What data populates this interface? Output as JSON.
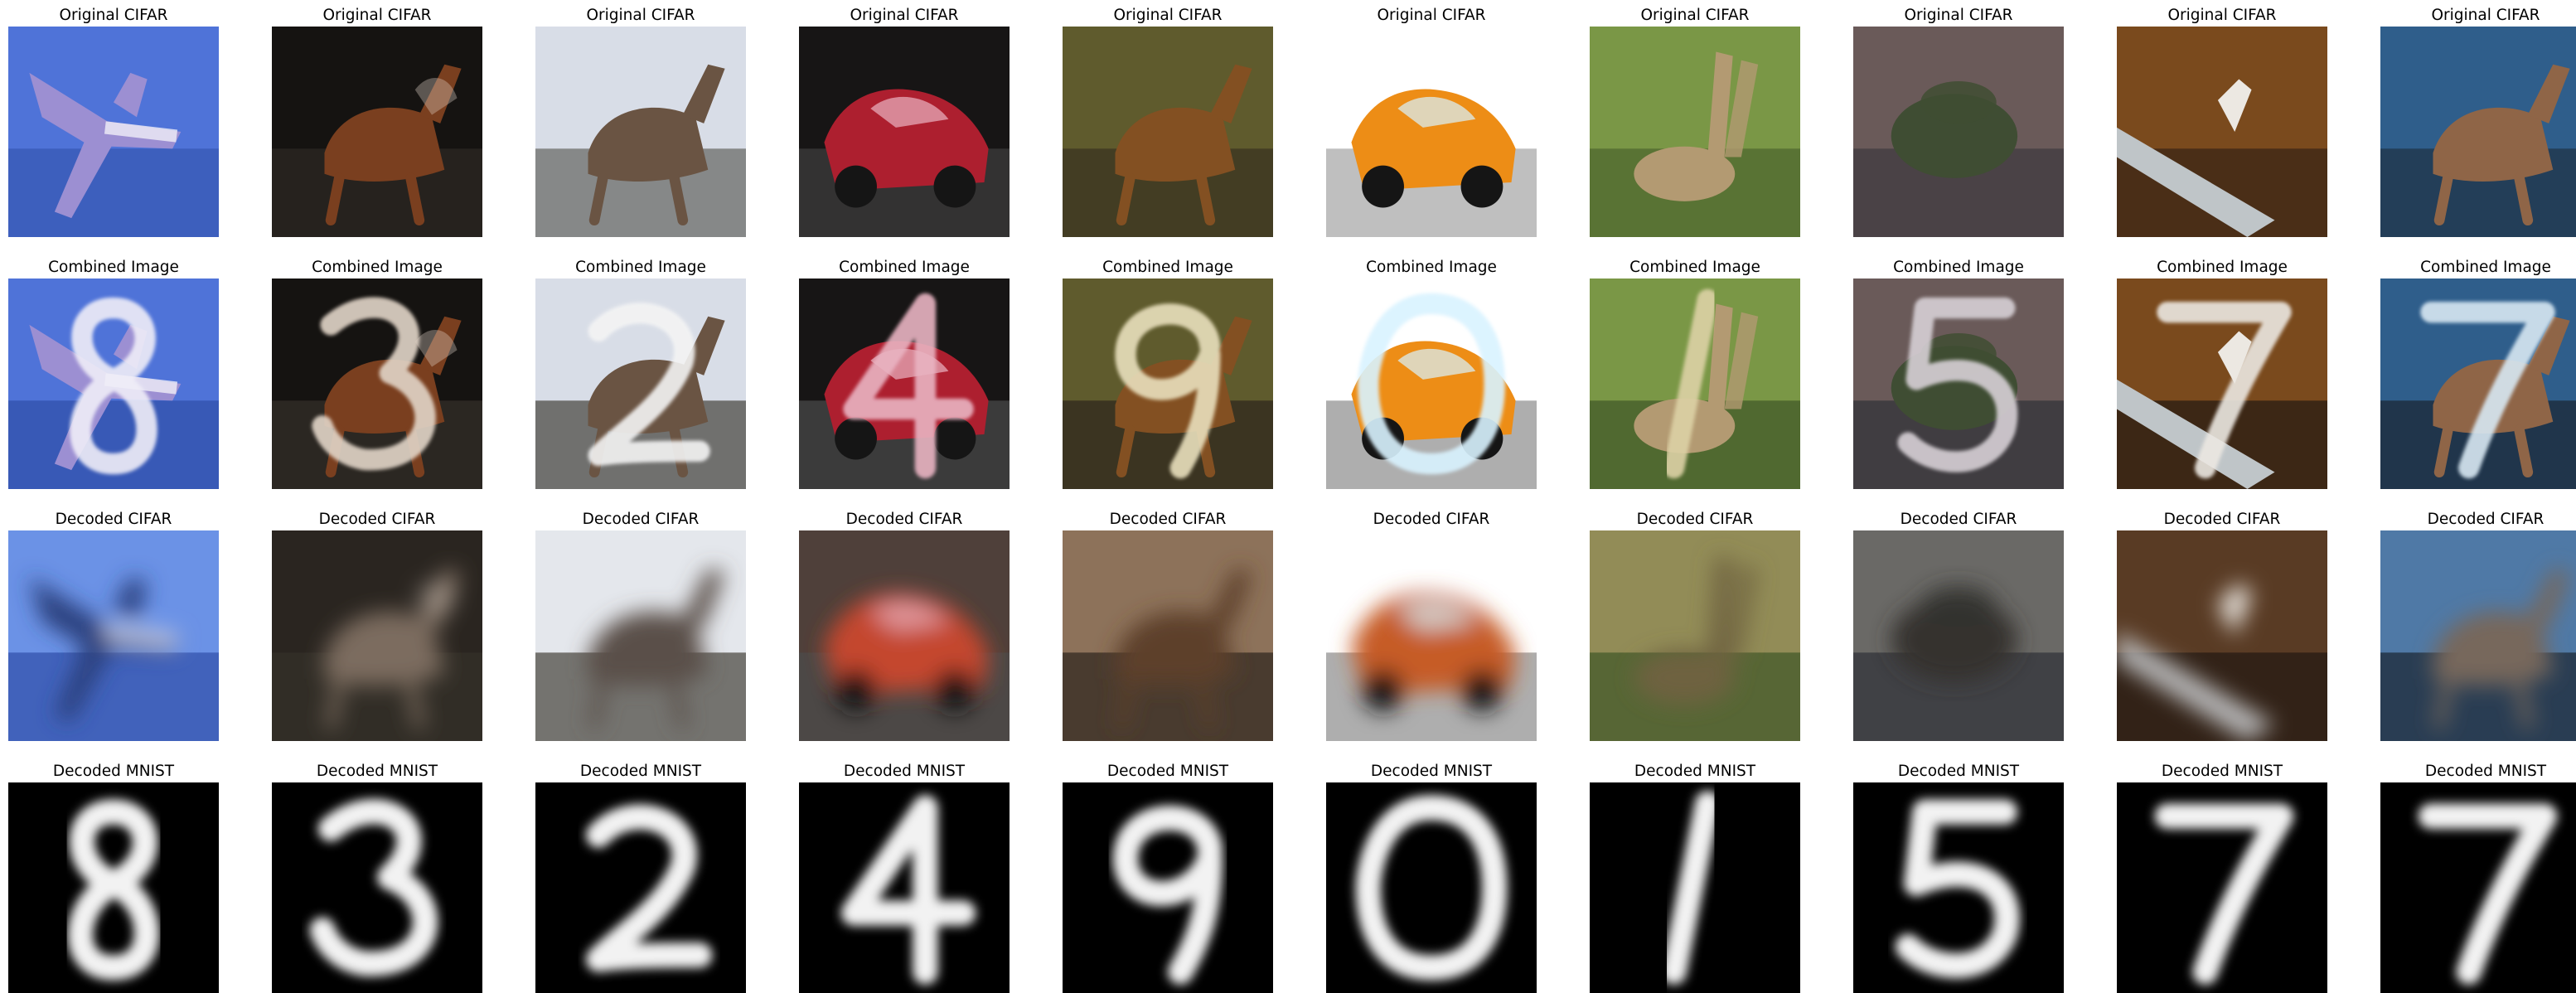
{
  "row_titles": [
    "Original CIFAR",
    "Combined Image",
    "Decoded CIFAR",
    "Decoded MNIST"
  ],
  "samples": [
    {
      "digit": "8",
      "subject": "airplane",
      "colors": {
        "bg": "#4f73d8",
        "bg2": "#2f4fa8",
        "obj": "#9c8fd2",
        "obj2": "#f0eef8",
        "decoded_bg": "#6b92e6",
        "decoded_obj": "#2b3f7d"
      }
    },
    {
      "digit": "3",
      "subject": "horse",
      "colors": {
        "bg": "#151311",
        "bg2": "#353029",
        "obj": "#7a3f1f",
        "obj2": "#e2d5c8",
        "decoded_bg": "#2a2520",
        "decoded_obj": "#7c6c5e"
      }
    },
    {
      "digit": "2",
      "subject": "deer-on-snow",
      "colors": {
        "bg": "#d8dde7",
        "bg2": "#44413b",
        "obj": "#6a5443",
        "obj2": "#f4f4f4",
        "decoded_bg": "#e4e7ec",
        "decoded_obj": "#5a5048"
      }
    },
    {
      "digit": "4",
      "subject": "red-car",
      "colors": {
        "bg": "#171515",
        "bg2": "#4b4b4b",
        "obj": "#ad1f2f",
        "obj2": "#e9b4c2",
        "decoded_bg": "#4f403a",
        "decoded_obj": "#c4472f"
      }
    },
    {
      "digit": "9",
      "subject": "deer-in-forest",
      "colors": {
        "bg": "#5f5b2d",
        "bg2": "#2c241c",
        "obj": "#835022",
        "obj2": "#e9e0bd",
        "decoded_bg": "#8d725a",
        "decoded_obj": "#5d3f2c"
      }
    },
    {
      "digit": "0",
      "subject": "orange-car",
      "colors": {
        "bg": "#ffffff",
        "bg2": "#8b8b8b",
        "obj": "#ed8d16",
        "obj2": "#d9f3ff",
        "decoded_bg": "#ffffff",
        "decoded_obj": "#c65c28"
      }
    },
    {
      "digit": "1",
      "subject": "rabbit-on-grass",
      "colors": {
        "bg": "#7a9746",
        "bg2": "#3e5527",
        "obj": "#b39a72",
        "obj2": "#ddd2a6",
        "decoded_bg": "#928c57",
        "decoded_obj": "#6e6240"
      }
    },
    {
      "digit": "5",
      "subject": "frog",
      "colors": {
        "bg": "#6a5a59",
        "bg2": "#2f3037",
        "obj": "#3f4d33",
        "obj2": "#d7d0d6",
        "decoded_bg": "#6a6966",
        "decoded_obj": "#34312f"
      }
    },
    {
      "digit": "7",
      "subject": "ship",
      "colors": {
        "bg": "#7a4a1d",
        "bg2": "#221813",
        "obj": "#bfc5c8",
        "obj2": "#ece8e2",
        "decoded_bg": "#593b24",
        "decoded_obj": "#b7b7b8"
      }
    },
    {
      "digit": "7",
      "subject": "deer-against-sky",
      "colors": {
        "bg": "#2f5e8b",
        "bg2": "#1a2430",
        "obj": "#8f6547",
        "obj2": "#d8e8f3",
        "decoded_bg": "#4f79a6",
        "decoded_obj": "#77685c"
      }
    }
  ]
}
